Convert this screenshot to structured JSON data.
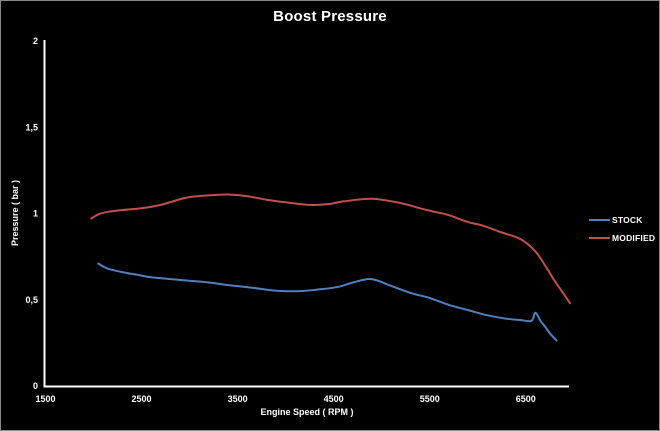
{
  "chart_data": {
    "type": "line",
    "title": "Boost Pressure",
    "xlabel": "Engine Speed ( RPM )",
    "ylabel": "Pressure ( bar )",
    "x_range": [
      1500,
      6950
    ],
    "y_range": [
      0,
      2
    ],
    "grid": false,
    "legend_position": "right",
    "background_color": "#000000",
    "axis_color": "#ffffff",
    "x_ticks": [
      {
        "value": 1500,
        "label": "1500"
      },
      {
        "value": 2500,
        "label": "2500"
      },
      {
        "value": 3500,
        "label": "3500"
      },
      {
        "value": 4500,
        "label": "4500"
      },
      {
        "value": 5500,
        "label": "5500"
      },
      {
        "value": 6500,
        "label": "6500"
      }
    ],
    "y_ticks": [
      {
        "value": 0,
        "label": "0"
      },
      {
        "value": 0.5,
        "label": "0,5"
      },
      {
        "value": 1,
        "label": "1"
      },
      {
        "value": 1.5,
        "label": "1,5"
      },
      {
        "value": 2,
        "label": "2"
      }
    ],
    "series": [
      {
        "name": "STOCK",
        "color": "#4F81BD",
        "points": [
          [
            2050,
            0.71
          ],
          [
            2150,
            0.68
          ],
          [
            2300,
            0.66
          ],
          [
            2450,
            0.645
          ],
          [
            2600,
            0.63
          ],
          [
            2800,
            0.62
          ],
          [
            3000,
            0.61
          ],
          [
            3200,
            0.6
          ],
          [
            3400,
            0.585
          ],
          [
            3650,
            0.57
          ],
          [
            3900,
            0.552
          ],
          [
            4150,
            0.55
          ],
          [
            4350,
            0.56
          ],
          [
            4550,
            0.575
          ],
          [
            4700,
            0.6
          ],
          [
            4890,
            0.62
          ],
          [
            5100,
            0.58
          ],
          [
            5300,
            0.54
          ],
          [
            5500,
            0.51
          ],
          [
            5700,
            0.47
          ],
          [
            5900,
            0.44
          ],
          [
            6100,
            0.41
          ],
          [
            6300,
            0.39
          ],
          [
            6450,
            0.382
          ],
          [
            6560,
            0.378
          ],
          [
            6600,
            0.425
          ],
          [
            6650,
            0.38
          ],
          [
            6700,
            0.345
          ],
          [
            6760,
            0.3
          ],
          [
            6820,
            0.265
          ]
        ]
      },
      {
        "name": "MODIFIED",
        "color": "#C0504D",
        "points": [
          [
            1975,
            0.97
          ],
          [
            2050,
            0.995
          ],
          [
            2150,
            1.01
          ],
          [
            2300,
            1.02
          ],
          [
            2500,
            1.03
          ],
          [
            2700,
            1.05
          ],
          [
            2850,
            1.075
          ],
          [
            3000,
            1.095
          ],
          [
            3200,
            1.105
          ],
          [
            3400,
            1.11
          ],
          [
            3600,
            1.1
          ],
          [
            3800,
            1.08
          ],
          [
            4000,
            1.065
          ],
          [
            4250,
            1.05
          ],
          [
            4450,
            1.055
          ],
          [
            4600,
            1.07
          ],
          [
            4900,
            1.085
          ],
          [
            5200,
            1.06
          ],
          [
            5400,
            1.03
          ],
          [
            5550,
            1.01
          ],
          [
            5700,
            0.99
          ],
          [
            5900,
            0.95
          ],
          [
            6050,
            0.93
          ],
          [
            6250,
            0.89
          ],
          [
            6450,
            0.85
          ],
          [
            6600,
            0.78
          ],
          [
            6700,
            0.7
          ],
          [
            6800,
            0.61
          ],
          [
            6900,
            0.53
          ],
          [
            6960,
            0.48
          ]
        ]
      }
    ]
  }
}
